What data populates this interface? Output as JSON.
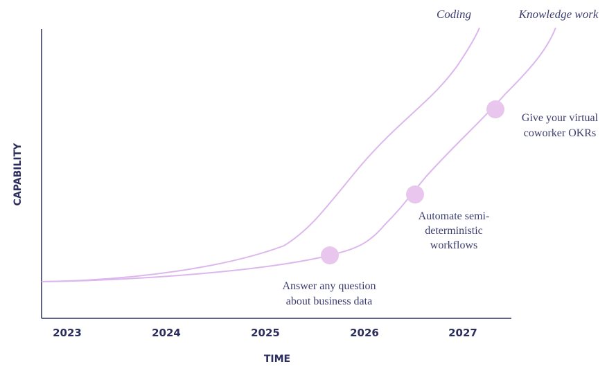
{
  "axes": {
    "y_label": "CAPABILITY",
    "x_label": "TIME",
    "x_ticks": [
      "2023",
      "2024",
      "2025",
      "2026",
      "2027"
    ]
  },
  "curves": [
    {
      "label": "Coding"
    },
    {
      "label": "Knowledge work"
    }
  ],
  "milestones": [
    {
      "lines": [
        "Answer any question",
        "about business data"
      ]
    },
    {
      "lines": [
        "Automate semi-",
        "deterministic",
        "workflows"
      ]
    },
    {
      "lines": [
        "Give your virtual",
        "coworker OKRs"
      ]
    }
  ]
}
